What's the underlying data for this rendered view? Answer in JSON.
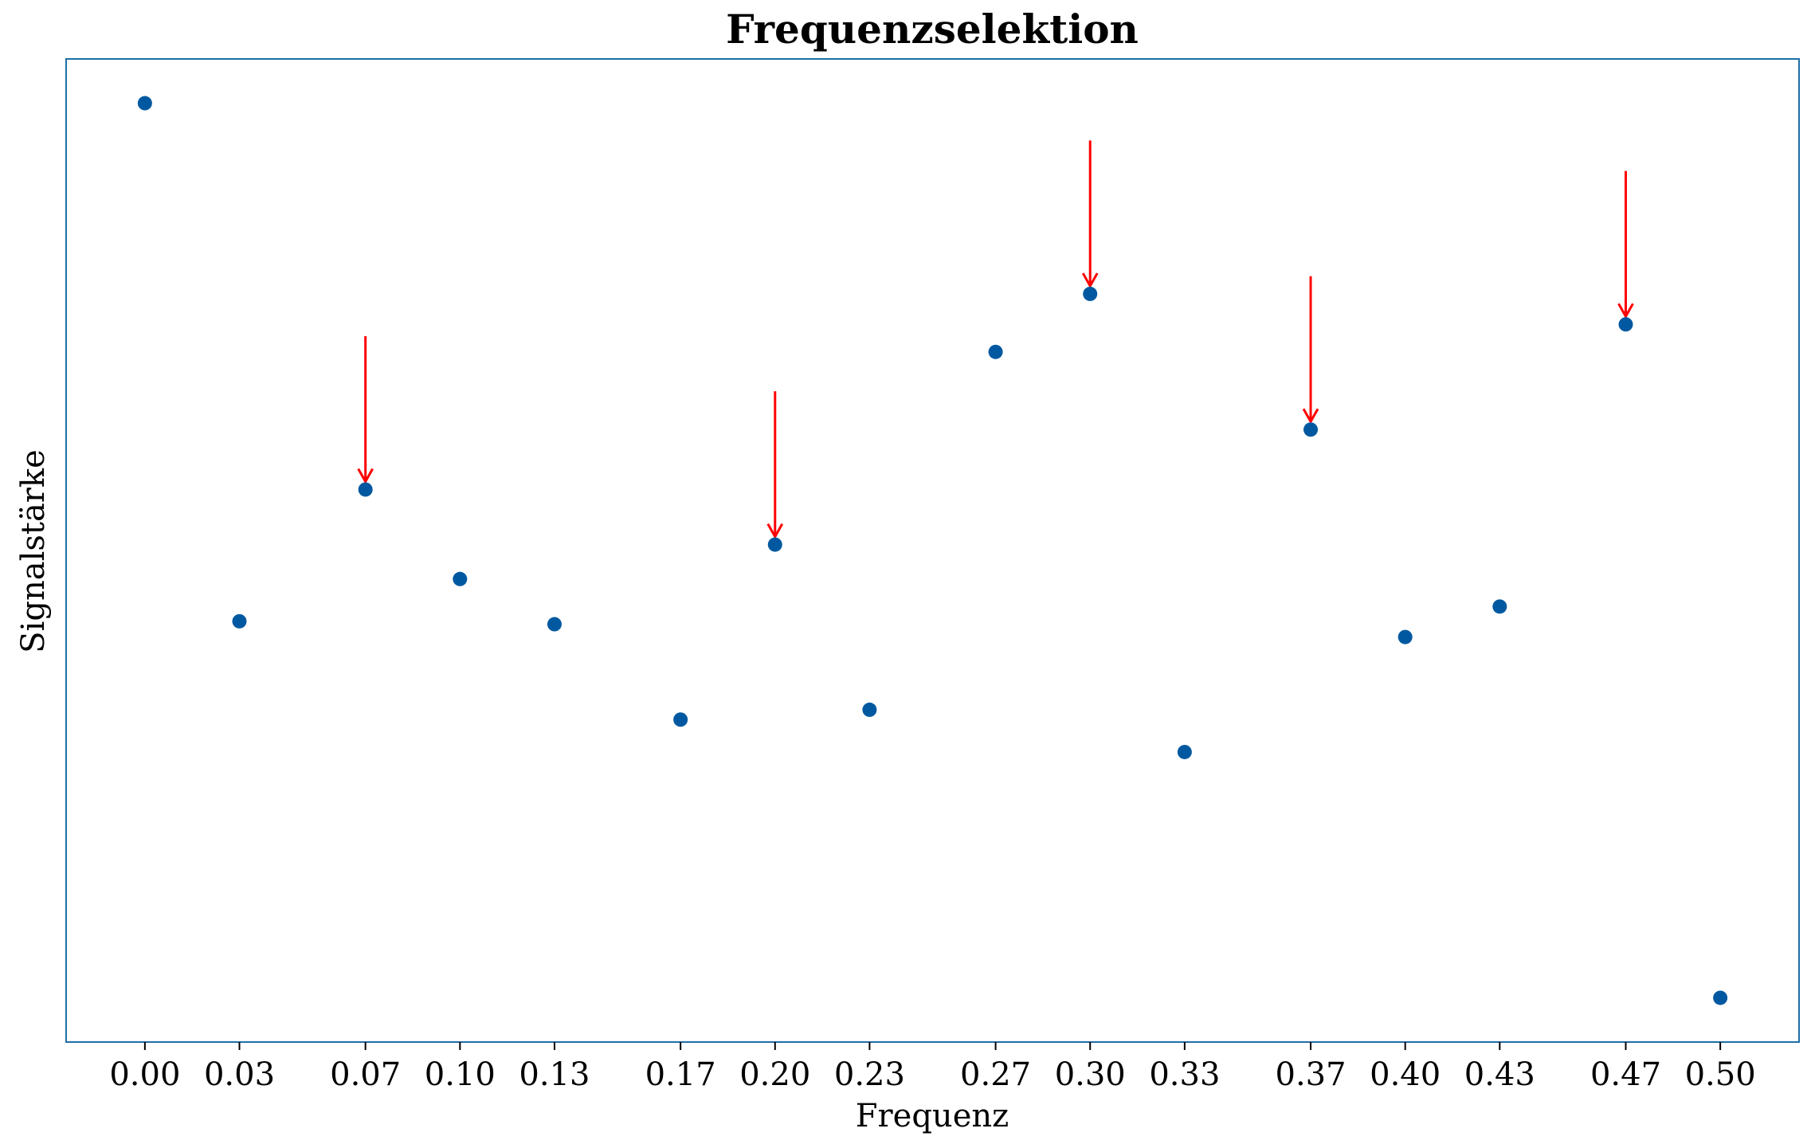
{
  "chart_data": {
    "type": "scatter",
    "title": "Frequenzselektion",
    "xlabel": "Frequenz",
    "ylabel": "Signalstärke",
    "xlim": [
      -0.025,
      0.525
    ],
    "ylim": [
      0.0,
      1.0
    ],
    "y_ticks_shown": false,
    "grid": false,
    "x_ticks": [
      {
        "value": 0.0,
        "label": "0.00"
      },
      {
        "value": 0.03,
        "label": "0.03"
      },
      {
        "value": 0.07,
        "label": "0.07"
      },
      {
        "value": 0.1,
        "label": "0.10"
      },
      {
        "value": 0.13,
        "label": "0.13"
      },
      {
        "value": 0.17,
        "label": "0.17"
      },
      {
        "value": 0.2,
        "label": "0.20"
      },
      {
        "value": 0.23,
        "label": "0.23"
      },
      {
        "value": 0.27,
        "label": "0.27"
      },
      {
        "value": 0.3,
        "label": "0.30"
      },
      {
        "value": 0.33,
        "label": "0.33"
      },
      {
        "value": 0.37,
        "label": "0.37"
      },
      {
        "value": 0.4,
        "label": "0.40"
      },
      {
        "value": 0.43,
        "label": "0.43"
      },
      {
        "value": 0.47,
        "label": "0.47"
      },
      {
        "value": 0.5,
        "label": "0.50"
      }
    ],
    "points": [
      {
        "x": 0.0,
        "y": 0.955
      },
      {
        "x": 0.03,
        "y": 0.428
      },
      {
        "x": 0.07,
        "y": 0.562
      },
      {
        "x": 0.1,
        "y": 0.471
      },
      {
        "x": 0.13,
        "y": 0.425
      },
      {
        "x": 0.17,
        "y": 0.328
      },
      {
        "x": 0.2,
        "y": 0.506
      },
      {
        "x": 0.23,
        "y": 0.338
      },
      {
        "x": 0.27,
        "y": 0.702
      },
      {
        "x": 0.3,
        "y": 0.761
      },
      {
        "x": 0.33,
        "y": 0.295
      },
      {
        "x": 0.37,
        "y": 0.623
      },
      {
        "x": 0.4,
        "y": 0.412
      },
      {
        "x": 0.43,
        "y": 0.443
      },
      {
        "x": 0.47,
        "y": 0.73
      },
      {
        "x": 0.5,
        "y": 0.045
      }
    ],
    "arrows": [
      {
        "x": 0.07,
        "from_y": 0.718,
        "to_y": 0.562
      },
      {
        "x": 0.2,
        "from_y": 0.662,
        "to_y": 0.506
      },
      {
        "x": 0.3,
        "from_y": 0.917,
        "to_y": 0.761
      },
      {
        "x": 0.37,
        "from_y": 0.779,
        "to_y": 0.623
      },
      {
        "x": 0.47,
        "from_y": 0.886,
        "to_y": 0.73
      }
    ],
    "colors": {
      "point": "#0059a0",
      "arrow": "#ff0000",
      "frame": "#1f6fa8"
    }
  }
}
